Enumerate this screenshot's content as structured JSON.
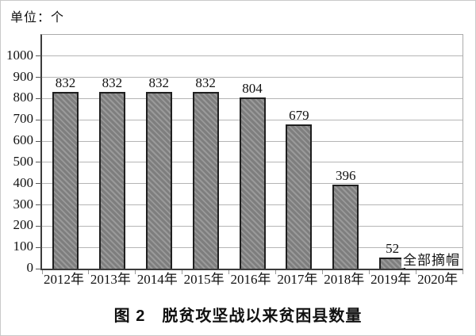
{
  "unit_label": "单位：个",
  "caption": "图 2　脱贫攻坚战以来贫困县数量",
  "annotation_label": "全部摘帽",
  "chart_data": {
    "type": "bar",
    "title": "图 2　脱贫攻坚战以来贫困县数量",
    "unit": "单位：个",
    "categories": [
      "2012年",
      "2013年",
      "2014年",
      "2015年",
      "2016年",
      "2017年",
      "2018年",
      "2019年",
      "2020年"
    ],
    "values": [
      832,
      832,
      832,
      832,
      804,
      679,
      396,
      52,
      0
    ],
    "value_labels": [
      "832",
      "832",
      "832",
      "832",
      "804",
      "679",
      "396",
      "52",
      ""
    ],
    "annotation": {
      "text": "全部摘帽",
      "category": "2020年",
      "position": "baseline-right"
    },
    "xlabel": "",
    "ylabel": "",
    "ylim": [
      0,
      1100
    ],
    "ytick_step": 100,
    "ytick_label_max": 1000,
    "grid": true,
    "legend": "none",
    "colors": {
      "bar_fill": "#7e7e7e",
      "bar_hatch": "#9a9a9a",
      "bar_border": "#1f1f1f",
      "gridline": "#b5b5b5",
      "axis_dark": "#3c3c3c",
      "frame_light": "#ababab",
      "text": "#111111",
      "background": "#ffffff"
    }
  }
}
